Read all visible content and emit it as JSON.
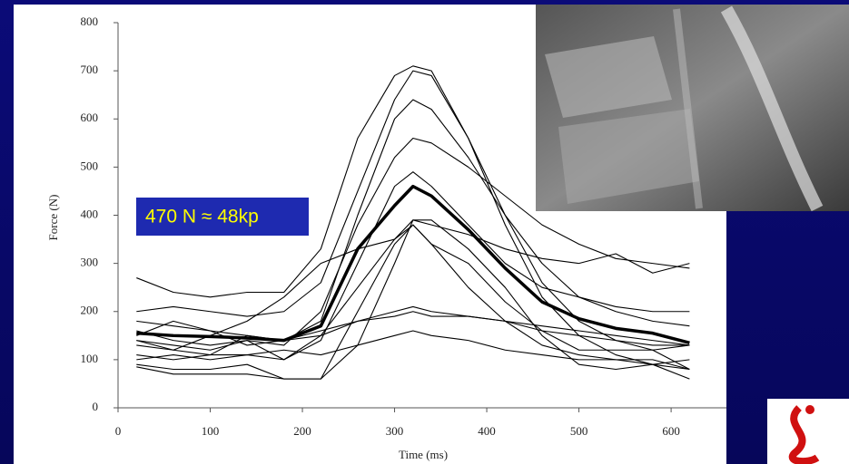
{
  "chart_data": {
    "type": "line",
    "x_label": "Time (ms)",
    "y_label": "Force (N)",
    "annotation": "470 N ≈ 48kp",
    "x": [
      20,
      60,
      100,
      140,
      180,
      220,
      260,
      300,
      320,
      340,
      380,
      420,
      460,
      500,
      540,
      580,
      620
    ],
    "xlim": [
      0,
      660
    ],
    "xticks": [
      0,
      100,
      200,
      300,
      400,
      500,
      600
    ],
    "ylim": [
      0,
      800
    ],
    "yticks": [
      0,
      100,
      200,
      300,
      400,
      500,
      600,
      700,
      800
    ],
    "series": [
      {
        "color": "#000000",
        "values": [
          270,
          240,
          230,
          240,
          240,
          330,
          560,
          690,
          710,
          700,
          560,
          400,
          260,
          180,
          140,
          120,
          80
        ]
      },
      {
        "color": "#000000",
        "values": [
          200,
          210,
          200,
          190,
          200,
          260,
          450,
          640,
          700,
          690,
          560,
          380,
          230,
          150,
          110,
          90,
          60
        ]
      },
      {
        "color": "#000000",
        "values": [
          180,
          170,
          160,
          150,
          140,
          180,
          400,
          600,
          640,
          620,
          520,
          400,
          300,
          230,
          200,
          180,
          170
        ]
      },
      {
        "color": "#000000",
        "values": [
          160,
          140,
          130,
          140,
          130,
          200,
          380,
          520,
          560,
          550,
          500,
          440,
          380,
          340,
          310,
          300,
          290
        ]
      },
      {
        "color": "#000000",
        "values": [
          140,
          130,
          120,
          140,
          100,
          140,
          300,
          460,
          490,
          460,
          380,
          300,
          250,
          230,
          210,
          200,
          200
        ]
      },
      {
        "color": "#000000",
        "values": [
          110,
          100,
          110,
          150,
          140,
          150,
          250,
          350,
          390,
          380,
          360,
          330,
          310,
          300,
          320,
          280,
          300
        ]
      },
      {
        "color": "#000000",
        "values": [
          90,
          80,
          80,
          90,
          60,
          60,
          200,
          340,
          380,
          340,
          250,
          180,
          130,
          110,
          100,
          100,
          80
        ]
      },
      {
        "color": "#000000",
        "values": [
          85,
          70,
          70,
          70,
          60,
          60,
          130,
          300,
          390,
          390,
          330,
          250,
          150,
          90,
          80,
          90,
          100
        ]
      },
      {
        "color": "#000000",
        "values": [
          100,
          110,
          100,
          110,
          100,
          150,
          180,
          200,
          210,
          200,
          190,
          180,
          160,
          150,
          140,
          130,
          130
        ]
      },
      {
        "color": "#000000",
        "values": [
          150,
          180,
          160,
          130,
          140,
          160,
          180,
          190,
          200,
          190,
          190,
          180,
          170,
          160,
          150,
          140,
          130
        ]
      },
      {
        "color": "#000000",
        "values": [
          130,
          120,
          110,
          110,
          120,
          110,
          130,
          150,
          160,
          150,
          140,
          120,
          110,
          100,
          100,
          90,
          80
        ]
      },
      {
        "color": "#000000",
        "values": [
          140,
          120,
          150,
          180,
          230,
          300,
          330,
          350,
          380,
          340,
          300,
          220,
          160,
          120,
          120,
          120,
          130
        ]
      },
      {
        "color": "#000000",
        "width": 3.5,
        "values": [
          155,
          150,
          148,
          145,
          140,
          170,
          330,
          420,
          460,
          440,
          370,
          290,
          220,
          185,
          165,
          155,
          135
        ]
      }
    ]
  }
}
